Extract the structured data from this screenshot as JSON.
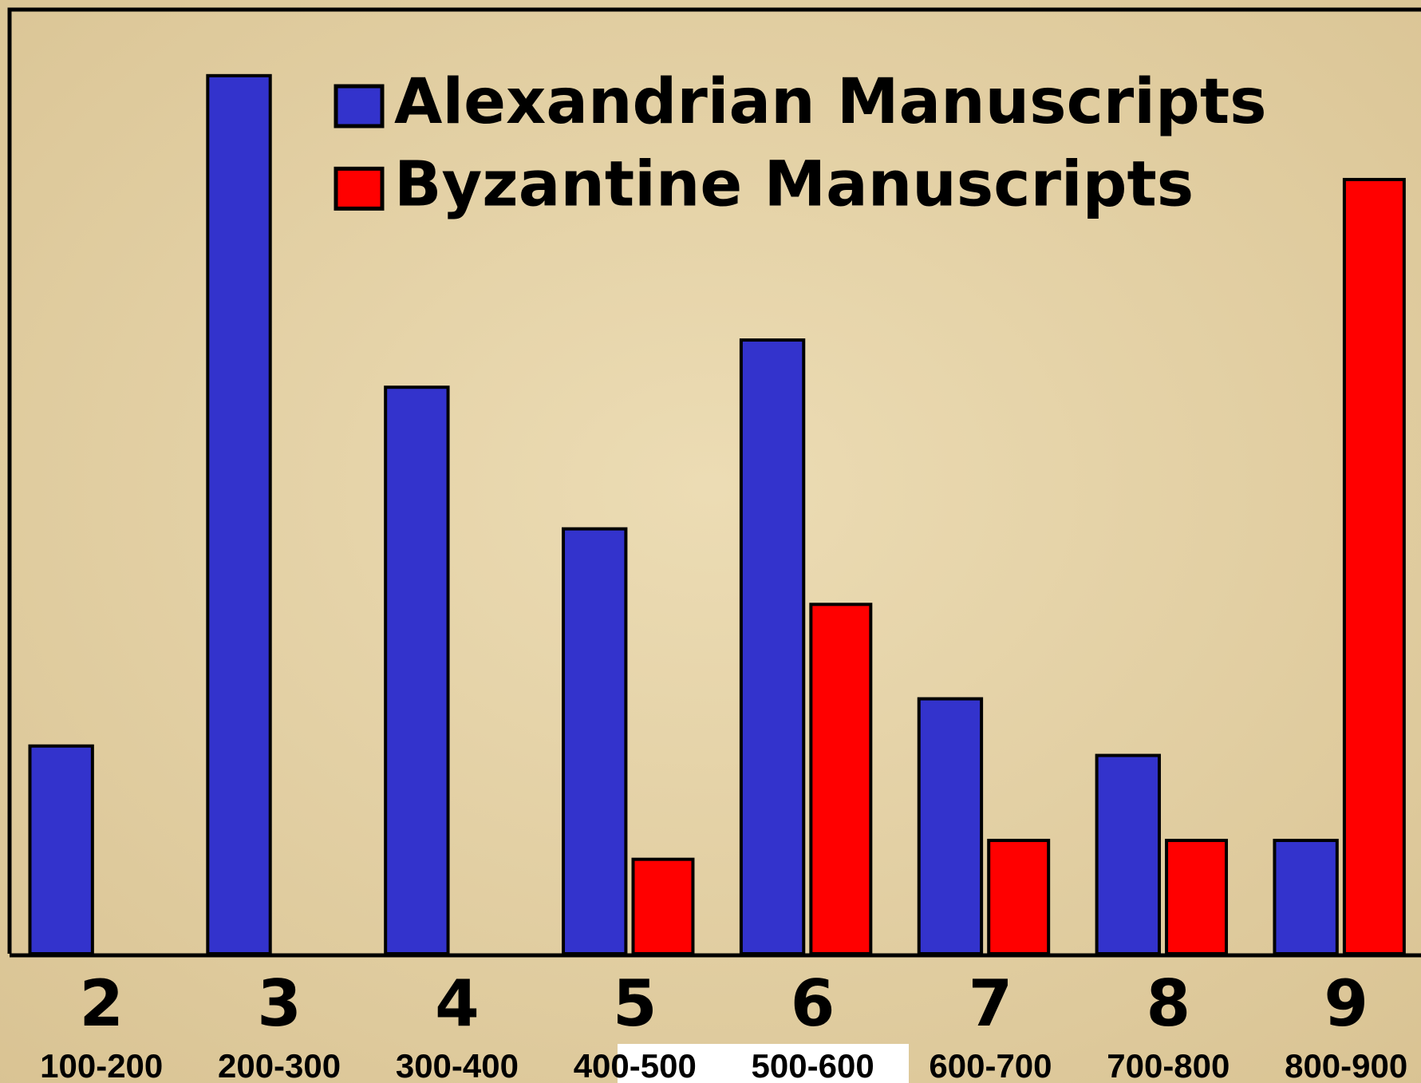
{
  "chart_data": {
    "type": "bar",
    "categories": [
      "2",
      "3",
      "4",
      "5",
      "6",
      "7",
      "8",
      "9"
    ],
    "category_sublabels": [
      "100-200",
      "200-300",
      "300-400",
      "400-500",
      "500-600",
      "600-700",
      "700-800",
      "800-900"
    ],
    "series": [
      {
        "name": "Alexandrian Manuscripts",
        "color": "#3333cc",
        "values": [
          22,
          93,
          60,
          45,
          65,
          27,
          21,
          12
        ]
      },
      {
        "name": "Byzantine Manuscripts",
        "color": "#ff0000",
        "values": [
          0,
          0,
          0,
          10,
          37,
          12,
          12,
          82
        ]
      }
    ],
    "ylim": [
      0,
      100
    ],
    "legend": "top"
  }
}
